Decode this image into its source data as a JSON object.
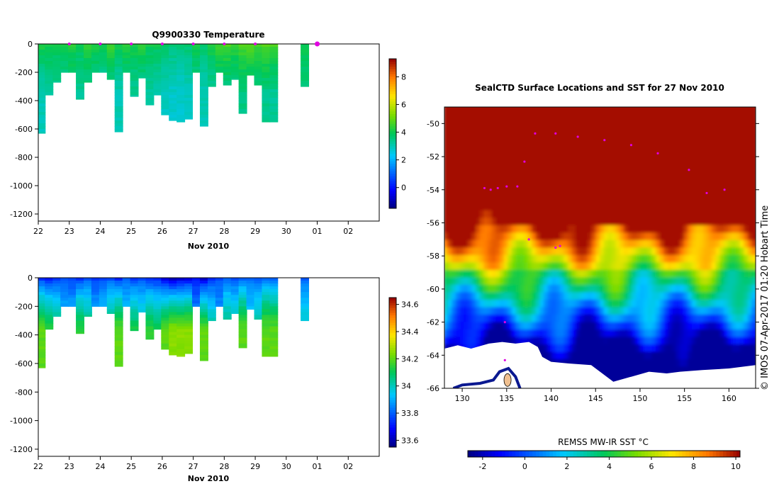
{
  "chart_data": [
    {
      "type": "heatmap",
      "name": "temperature-section",
      "title": "Q9900330  Temperature",
      "xlabel": "Nov 2010",
      "ylabel": "",
      "x_ticks": [
        "22",
        "23",
        "24",
        "25",
        "26",
        "27",
        "28",
        "29",
        "30",
        "01",
        "02"
      ],
      "x_range": [
        22,
        33
      ],
      "y_ticks": [
        0,
        -200,
        -400,
        -600,
        -800,
        -1000,
        -1200
      ],
      "ylim": [
        -1250,
        0
      ],
      "colorbar": {
        "ticks": [
          0,
          2,
          4,
          6,
          8
        ],
        "range": [
          -1.5,
          9.3
        ]
      },
      "surface_markers_day": [
        23,
        24,
        25,
        26,
        27,
        28,
        29,
        31
      ],
      "profiles": [
        {
          "day": 22.1,
          "max_depth": 630,
          "surface": 4.3,
          "deep": 3.0
        },
        {
          "day": 22.35,
          "max_depth": 360,
          "surface": 4.2,
          "deep": 3.2
        },
        {
          "day": 22.6,
          "max_depth": 270,
          "surface": 4.0,
          "deep": 3.4
        },
        {
          "day": 22.85,
          "max_depth": 200,
          "surface": 4.1,
          "deep": 3.3
        },
        {
          "day": 23.1,
          "max_depth": 200,
          "surface": 4.3,
          "deep": 3.4
        },
        {
          "day": 23.35,
          "max_depth": 390,
          "surface": 4.0,
          "deep": 3.3
        },
        {
          "day": 23.6,
          "max_depth": 270,
          "surface": 4.4,
          "deep": 3.4
        },
        {
          "day": 23.85,
          "max_depth": 200,
          "surface": 4.2,
          "deep": 3.3
        },
        {
          "day": 24.1,
          "max_depth": 200,
          "surface": 4.1,
          "deep": 3.0
        },
        {
          "day": 24.35,
          "max_depth": 250,
          "surface": 4.6,
          "deep": 3.3
        },
        {
          "day": 24.6,
          "max_depth": 620,
          "surface": 4.2,
          "deep": 3.0
        },
        {
          "day": 24.85,
          "max_depth": 200,
          "surface": 4.3,
          "deep": 3.3
        },
        {
          "day": 25.1,
          "max_depth": 370,
          "surface": 4.2,
          "deep": 3.3
        },
        {
          "day": 25.35,
          "max_depth": 240,
          "surface": 4.4,
          "deep": 3.2
        },
        {
          "day": 25.6,
          "max_depth": 430,
          "surface": 4.1,
          "deep": 3.2
        },
        {
          "day": 25.85,
          "max_depth": 360,
          "surface": 4.0,
          "deep": 3.1
        },
        {
          "day": 26.1,
          "max_depth": 500,
          "surface": 3.9,
          "deep": 2.9
        },
        {
          "day": 26.35,
          "max_depth": 540,
          "surface": 3.7,
          "deep": 2.8
        },
        {
          "day": 26.6,
          "max_depth": 550,
          "surface": 3.6,
          "deep": 2.8
        },
        {
          "day": 26.85,
          "max_depth": 530,
          "surface": 3.7,
          "deep": 2.9
        },
        {
          "day": 27.1,
          "max_depth": 200,
          "surface": 4.1,
          "deep": 3.3
        },
        {
          "day": 27.35,
          "max_depth": 580,
          "surface": 3.8,
          "deep": 3.0
        },
        {
          "day": 27.6,
          "max_depth": 300,
          "surface": 4.3,
          "deep": 3.2
        },
        {
          "day": 27.85,
          "max_depth": 200,
          "surface": 4.6,
          "deep": 3.4
        },
        {
          "day": 28.1,
          "max_depth": 290,
          "surface": 4.7,
          "deep": 3.4
        },
        {
          "day": 28.35,
          "max_depth": 250,
          "surface": 4.5,
          "deep": 3.3
        },
        {
          "day": 28.6,
          "max_depth": 490,
          "surface": 4.8,
          "deep": 3.5
        },
        {
          "day": 28.85,
          "max_depth": 220,
          "surface": 4.9,
          "deep": 3.5
        },
        {
          "day": 29.1,
          "max_depth": 290,
          "surface": 4.7,
          "deep": 3.4
        },
        {
          "day": 29.35,
          "max_depth": 550,
          "surface": 4.9,
          "deep": 3.4
        },
        {
          "day": 29.6,
          "max_depth": 550,
          "surface": 4.7,
          "deep": 3.3
        },
        {
          "day": 30.6,
          "max_depth": 300,
          "surface": 4.0,
          "deep": 3.5
        }
      ]
    },
    {
      "type": "heatmap",
      "name": "salinity-section",
      "title": "",
      "xlabel": "Nov 2010",
      "x_ticks": [
        "22",
        "23",
        "24",
        "25",
        "26",
        "27",
        "28",
        "29",
        "30",
        "01",
        "02"
      ],
      "x_range": [
        22,
        33
      ],
      "y_ticks": [
        0,
        -200,
        -400,
        -600,
        -800,
        -1000,
        -1200
      ],
      "ylim": [
        -1250,
        0
      ],
      "colorbar": {
        "ticks": [
          33.6,
          33.8,
          34,
          34.2,
          34.4,
          34.6
        ],
        "range": [
          33.55,
          34.65
        ]
      },
      "profiles": [
        {
          "day": 22.1,
          "max_depth": 630,
          "surface": 33.75,
          "deep": 34.2
        },
        {
          "day": 22.35,
          "max_depth": 360,
          "surface": 33.72,
          "deep": 34.15
        },
        {
          "day": 22.6,
          "max_depth": 270,
          "surface": 33.74,
          "deep": 34.1
        },
        {
          "day": 22.85,
          "max_depth": 200,
          "surface": 33.78,
          "deep": 33.95
        },
        {
          "day": 23.1,
          "max_depth": 200,
          "surface": 33.76,
          "deep": 33.95
        },
        {
          "day": 23.35,
          "max_depth": 390,
          "surface": 33.74,
          "deep": 34.15
        },
        {
          "day": 23.6,
          "max_depth": 270,
          "surface": 33.78,
          "deep": 34.1
        },
        {
          "day": 23.85,
          "max_depth": 200,
          "surface": 33.75,
          "deep": 33.95
        },
        {
          "day": 24.1,
          "max_depth": 200,
          "surface": 33.77,
          "deep": 33.98
        },
        {
          "day": 24.35,
          "max_depth": 250,
          "surface": 33.78,
          "deep": 34.1
        },
        {
          "day": 24.6,
          "max_depth": 620,
          "surface": 33.74,
          "deep": 34.2
        },
        {
          "day": 24.85,
          "max_depth": 200,
          "surface": 33.8,
          "deep": 33.98
        },
        {
          "day": 25.1,
          "max_depth": 370,
          "surface": 33.75,
          "deep": 34.12
        },
        {
          "day": 25.35,
          "max_depth": 240,
          "surface": 33.77,
          "deep": 34.05
        },
        {
          "day": 25.6,
          "max_depth": 430,
          "surface": 33.74,
          "deep": 34.15
        },
        {
          "day": 25.85,
          "max_depth": 360,
          "surface": 33.72,
          "deep": 34.12
        },
        {
          "day": 26.1,
          "max_depth": 500,
          "surface": 33.66,
          "deep": 34.2
        },
        {
          "day": 26.35,
          "max_depth": 540,
          "surface": 33.62,
          "deep": 34.25
        },
        {
          "day": 26.6,
          "max_depth": 550,
          "surface": 33.63,
          "deep": 34.25
        },
        {
          "day": 26.85,
          "max_depth": 530,
          "surface": 33.65,
          "deep": 34.25
        },
        {
          "day": 27.1,
          "max_depth": 200,
          "surface": 33.7,
          "deep": 33.9
        },
        {
          "day": 27.35,
          "max_depth": 580,
          "surface": 33.64,
          "deep": 34.2
        },
        {
          "day": 27.6,
          "max_depth": 300,
          "surface": 33.74,
          "deep": 34.05
        },
        {
          "day": 27.85,
          "max_depth": 200,
          "surface": 33.78,
          "deep": 33.9
        },
        {
          "day": 28.1,
          "max_depth": 290,
          "surface": 33.8,
          "deep": 34.08
        },
        {
          "day": 28.35,
          "max_depth": 250,
          "surface": 33.78,
          "deep": 34.05
        },
        {
          "day": 28.6,
          "max_depth": 490,
          "surface": 33.8,
          "deep": 34.2
        },
        {
          "day": 28.85,
          "max_depth": 220,
          "surface": 33.82,
          "deep": 33.98
        },
        {
          "day": 29.1,
          "max_depth": 290,
          "surface": 33.8,
          "deep": 34.05
        },
        {
          "day": 29.35,
          "max_depth": 550,
          "surface": 33.82,
          "deep": 34.2
        },
        {
          "day": 29.6,
          "max_depth": 550,
          "surface": 33.8,
          "deep": 34.2
        },
        {
          "day": 30.6,
          "max_depth": 300,
          "surface": 33.8,
          "deep": 34.0
        }
      ]
    },
    {
      "type": "heatmap",
      "name": "sst-map",
      "title": "SealCTD Surface Locations and SST for 27 Nov 2010",
      "x_ticks": [
        130,
        135,
        140,
        145,
        150,
        155,
        160
      ],
      "y_ticks": [
        -50,
        -52,
        -54,
        -56,
        -58,
        -60,
        -62,
        -64,
        -66
      ],
      "lon_range": [
        128,
        163
      ],
      "lat_range": [
        -66,
        -49
      ],
      "colorbar": {
        "label": "REMSS MW-IR SST °C",
        "ticks": [
          -2,
          0,
          2,
          4,
          6,
          8,
          10
        ],
        "range": [
          -2.7,
          10.2
        ]
      },
      "credit": "© IMOS 07-Apr-2017 01:20 Hobart Time",
      "track_points": [
        [
          132.5,
          -53.9
        ],
        [
          133.2,
          -54.0
        ],
        [
          134.0,
          -53.9
        ],
        [
          135.0,
          -53.8
        ],
        [
          136.2,
          -53.8
        ],
        [
          141.0,
          -57.4
        ],
        [
          137.0,
          -52.3
        ],
        [
          138.2,
          -50.6
        ],
        [
          140.5,
          -50.6
        ],
        [
          143.0,
          -50.8
        ],
        [
          146.0,
          -51.0
        ],
        [
          149.0,
          -51.3
        ],
        [
          152.0,
          -51.8
        ],
        [
          155.5,
          -52.8
        ],
        [
          157.5,
          -54.2
        ],
        [
          159.5,
          -54.0
        ],
        [
          134.8,
          -64.3
        ],
        [
          134.8,
          -62.0
        ],
        [
          137.5,
          -57.0
        ],
        [
          140.5,
          -57.5
        ]
      ]
    }
  ],
  "colors": {
    "marker": "#e000e0",
    "land": "#ffffff",
    "coast": "#0a1890",
    "ice_core": "#f0c090"
  }
}
